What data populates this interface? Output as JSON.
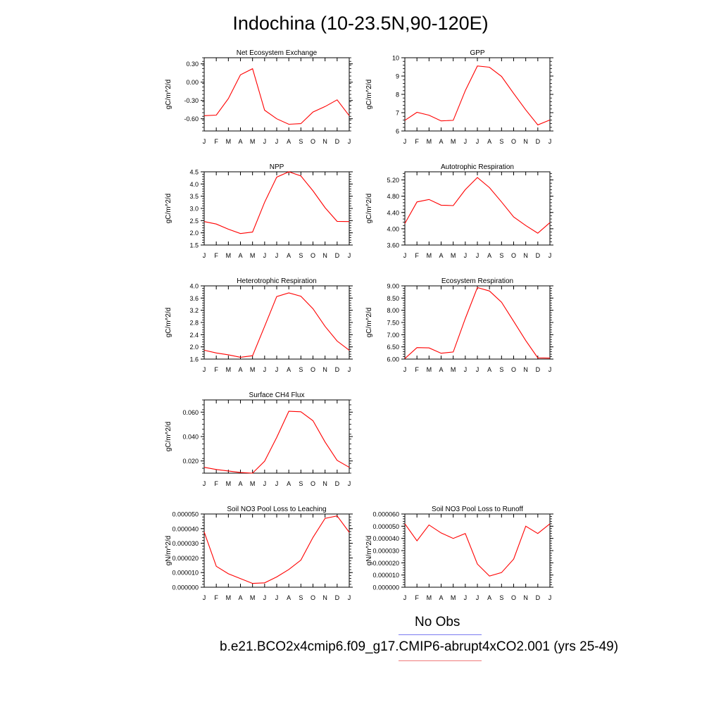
{
  "page": {
    "title": "Indochina (10-23.5N,90-120E)"
  },
  "legend": {
    "obs_label": "No Obs",
    "obs_color": "#7b7bf0",
    "model_label": "b.e21.BCO2x4cmip6.f09_g17.CMIP6-abrupt4xCO2.001 (yrs 25-49)",
    "model_color": "#f07b7b"
  },
  "line_color": "#ff0000",
  "chart_data": [
    {
      "type": "line",
      "title": "Net Ecosystem Exchange",
      "ylabel": "gC/m^2/d",
      "categories": [
        "J",
        "F",
        "M",
        "A",
        "M",
        "J",
        "J",
        "A",
        "S",
        "O",
        "N",
        "D",
        "J"
      ],
      "values": [
        -0.55,
        -0.54,
        -0.27,
        0.12,
        0.22,
        -0.46,
        -0.6,
        -0.69,
        -0.68,
        -0.49,
        -0.4,
        -0.29,
        -0.55
      ],
      "ylim": [
        -0.8,
        0.4
      ],
      "yticks": [
        "0.30",
        "0.00",
        "-0.30",
        "-0.60"
      ],
      "ytick_values": [
        0.3,
        0.0,
        -0.3,
        -0.6
      ]
    },
    {
      "type": "line",
      "title": "GPP",
      "ylabel": "gC/m^2/d",
      "categories": [
        "J",
        "F",
        "M",
        "A",
        "M",
        "J",
        "J",
        "A",
        "S",
        "O",
        "N",
        "D",
        "J"
      ],
      "values": [
        6.58,
        7.02,
        6.86,
        6.55,
        6.58,
        8.2,
        9.55,
        9.48,
        8.98,
        8.05,
        7.15,
        6.33,
        6.6
      ],
      "ylim": [
        6,
        10
      ],
      "yticks": [
        "10",
        "9",
        "8",
        "7",
        "6"
      ],
      "ytick_values": [
        10,
        9,
        8,
        7,
        6
      ]
    },
    {
      "type": "line",
      "title": "NPP",
      "ylabel": "gC/m^2/d",
      "categories": [
        "J",
        "F",
        "M",
        "A",
        "M",
        "J",
        "J",
        "A",
        "S",
        "O",
        "N",
        "D",
        "J"
      ],
      "values": [
        2.46,
        2.36,
        2.15,
        1.97,
        2.03,
        3.25,
        4.28,
        4.5,
        4.33,
        3.72,
        3.03,
        2.47,
        2.46
      ],
      "ylim": [
        1.5,
        4.5
      ],
      "yticks": [
        "4.5",
        "4.0",
        "3.5",
        "3.0",
        "2.5",
        "2.0",
        "1.5"
      ],
      "ytick_values": [
        4.5,
        4.0,
        3.5,
        3.0,
        2.5,
        2.0,
        1.5
      ]
    },
    {
      "type": "line",
      "title": "Autotrophic Respiration",
      "ylabel": "gC/m^2/d",
      "categories": [
        "J",
        "F",
        "M",
        "A",
        "M",
        "J",
        "J",
        "A",
        "S",
        "O",
        "N",
        "D",
        "J"
      ],
      "values": [
        4.13,
        4.66,
        4.72,
        4.58,
        4.57,
        4.96,
        5.26,
        5.01,
        4.66,
        4.29,
        4.08,
        3.89,
        4.15
      ],
      "ylim": [
        3.6,
        5.4
      ],
      "yticks": [
        "5.20",
        "4.80",
        "4.40",
        "4.00",
        "3.60"
      ],
      "ytick_values": [
        5.2,
        4.8,
        4.4,
        4.0,
        3.6
      ]
    },
    {
      "type": "line",
      "title": "Heterotrophic Respiration",
      "ylabel": "gC/m^2/d",
      "categories": [
        "J",
        "F",
        "M",
        "A",
        "M",
        "J",
        "J",
        "A",
        "S",
        "O",
        "N",
        "D",
        "J"
      ],
      "values": [
        1.89,
        1.8,
        1.74,
        1.66,
        1.71,
        2.67,
        3.65,
        3.77,
        3.66,
        3.25,
        2.67,
        2.19,
        1.89
      ],
      "ylim": [
        1.6,
        4.0
      ],
      "yticks": [
        "4.0",
        "3.6",
        "3.2",
        "2.8",
        "2.4",
        "2.0",
        "1.6"
      ],
      "ytick_values": [
        4.0,
        3.6,
        3.2,
        2.8,
        2.4,
        2.0,
        1.6
      ]
    },
    {
      "type": "line",
      "title": "Ecosystem Respiration",
      "ylabel": "gC/m^2/d",
      "categories": [
        "J",
        "F",
        "M",
        "A",
        "M",
        "J",
        "J",
        "A",
        "S",
        "O",
        "N",
        "D",
        "J"
      ],
      "values": [
        6.02,
        6.47,
        6.46,
        6.24,
        6.29,
        7.66,
        8.93,
        8.79,
        8.33,
        7.55,
        6.76,
        6.05,
        6.04
      ],
      "ylim": [
        6.0,
        9.0
      ],
      "yticks": [
        "9.00",
        "8.50",
        "8.00",
        "7.50",
        "7.00",
        "6.50",
        "6.00"
      ],
      "ytick_values": [
        9.0,
        8.5,
        8.0,
        7.5,
        7.0,
        6.5,
        6.0
      ]
    },
    {
      "type": "line",
      "title": "Surface CH4 Flux",
      "ylabel": "gC/m^2/d",
      "categories": [
        "J",
        "F",
        "M",
        "A",
        "M",
        "J",
        "J",
        "A",
        "S",
        "O",
        "N",
        "D",
        "J"
      ],
      "values": [
        0.0148,
        0.013,
        0.0118,
        0.0105,
        0.01,
        0.0198,
        0.0393,
        0.0607,
        0.0603,
        0.053,
        0.0355,
        0.0205,
        0.0148
      ],
      "ylim": [
        0.01,
        0.07
      ],
      "yticks": [
        "0.060",
        "0.040",
        "0.020"
      ],
      "ytick_values": [
        0.06,
        0.04,
        0.02
      ]
    },
    {
      "type": "line",
      "title": "Soil NO3 Pool Loss to Leaching",
      "ylabel": "gN/m^2/d",
      "categories": [
        "J",
        "F",
        "M",
        "A",
        "M",
        "J",
        "J",
        "A",
        "S",
        "O",
        "N",
        "D",
        "J"
      ],
      "values": [
        3.77e-05,
        1.43e-05,
        9.2e-06,
        5.9e-06,
        2.6e-06,
        3e-06,
        7e-06,
        1.21e-05,
        1.85e-05,
        3.4e-05,
        4.7e-05,
        4.87e-05,
        3.75e-05
      ],
      "ylim": [
        0,
        5e-05
      ],
      "yticks": [
        "0.000050",
        "0.000040",
        "0.000030",
        "0.000020",
        "0.000010",
        "0.000000"
      ],
      "ytick_values": [
        5e-05,
        4e-05,
        3e-05,
        2e-05,
        1e-05,
        0
      ]
    },
    {
      "type": "line",
      "title": "Soil NO3 Pool Loss to Runoff",
      "ylabel": "gN/m^2/d",
      "categories": [
        "J",
        "F",
        "M",
        "A",
        "M",
        "J",
        "J",
        "A",
        "S",
        "O",
        "N",
        "D",
        "J"
      ],
      "values": [
        5.2e-05,
        3.8e-05,
        5.1e-05,
        4.45e-05,
        4e-05,
        4.4e-05,
        1.9e-05,
        9.2e-06,
        1.2e-05,
        2.3e-05,
        5e-05,
        4.4e-05,
        5.2e-05
      ],
      "ylim": [
        0,
        6e-05
      ],
      "yticks": [
        "0.000060",
        "0.000050",
        "0.000040",
        "0.000030",
        "0.000020",
        "0.000010",
        "0.000000"
      ],
      "ytick_values": [
        6e-05,
        5e-05,
        4e-05,
        3e-05,
        2e-05,
        1e-05,
        0
      ]
    }
  ]
}
